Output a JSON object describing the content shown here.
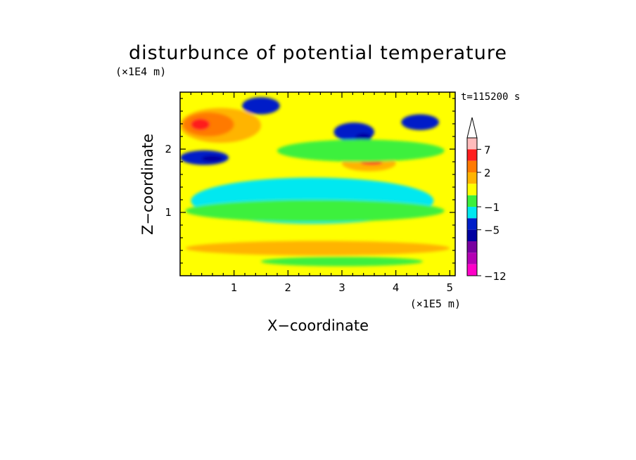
{
  "chart_data": {
    "type": "heatmap",
    "title": "disturbunce of potential temperature",
    "xlabel": "X−coordinate",
    "ylabel": "Z−coordinate",
    "x_unit": "(×1E5 m)",
    "y_unit": "(×1E4 m)",
    "time_label": "t=115200 s",
    "xlim": [
      0,
      5.1
    ],
    "ylim": [
      0,
      2.9
    ],
    "x_ticks": [
      1,
      2,
      3,
      4,
      5
    ],
    "y_ticks": [
      1,
      2
    ],
    "colorbar": {
      "labels": [
        "7",
        "2",
        "−1",
        "−5",
        "−12"
      ],
      "label_values": [
        7,
        2,
        -1,
        -5,
        -12
      ],
      "levels_top_to_bottom": [
        {
          "level": 10,
          "color": "#ffbcbc"
        },
        {
          "level": 7,
          "color": "#ff1e1e"
        },
        {
          "level": 5,
          "color": "#ff7a00"
        },
        {
          "level": 2,
          "color": "#ffb400"
        },
        {
          "level": 1,
          "color": "#ffff00"
        },
        {
          "level": 0,
          "color": "#3cf03c"
        },
        {
          "level": -1,
          "color": "#00e8f0"
        },
        {
          "level": -3,
          "color": "#001ec8"
        },
        {
          "level": -5,
          "color": "#0000a0"
        },
        {
          "level": -7,
          "color": "#7800a0"
        },
        {
          "level": -9,
          "color": "#b400b4"
        },
        {
          "level": -12,
          "color": "#ff00c8"
        }
      ],
      "overflow_arrow_color": "#ffffff"
    },
    "field_regions": [
      {
        "value": 1,
        "x": [
          0,
          5.1
        ],
        "z": [
          0,
          2.9
        ]
      },
      {
        "value": -1,
        "x": [
          0.2,
          4.7
        ],
        "z": [
          0.82,
          1.55
        ]
      },
      {
        "value": 0,
        "x": [
          0.1,
          4.9
        ],
        "z": [
          0.85,
          1.2
        ]
      },
      {
        "value": 2,
        "x": [
          0.1,
          5.0
        ],
        "z": [
          0.32,
          0.55
        ]
      },
      {
        "value": 0,
        "x": [
          1.5,
          4.5
        ],
        "z": [
          0.15,
          0.3
        ]
      },
      {
        "value": 2,
        "x": [
          0.0,
          1.5
        ],
        "z": [
          2.1,
          2.65
        ]
      },
      {
        "value": 5,
        "x": [
          0.05,
          1.0
        ],
        "z": [
          2.2,
          2.58
        ]
      },
      {
        "value": 7,
        "x": [
          0.2,
          0.55
        ],
        "z": [
          2.3,
          2.48
        ]
      },
      {
        "value": -3,
        "x": [
          0.0,
          0.9
        ],
        "z": [
          1.75,
          1.98
        ]
      },
      {
        "value": -5,
        "x": [
          0.4,
          0.8
        ],
        "z": [
          1.8,
          1.9
        ]
      },
      {
        "value": -3,
        "x": [
          1.15,
          1.85
        ],
        "z": [
          2.55,
          2.82
        ]
      },
      {
        "value": -3,
        "x": [
          2.85,
          3.6
        ],
        "z": [
          2.12,
          2.42
        ]
      },
      {
        "value": -5,
        "x": [
          3.25,
          3.55
        ],
        "z": [
          2.12,
          2.25
        ]
      },
      {
        "value": -3,
        "x": [
          4.1,
          4.8
        ],
        "z": [
          2.3,
          2.55
        ]
      },
      {
        "value": 2,
        "x": [
          3.0,
          4.0
        ],
        "z": [
          1.65,
          1.9
        ]
      },
      {
        "value": 7,
        "x": [
          3.35,
          3.75
        ],
        "z": [
          1.75,
          1.82
        ]
      },
      {
        "value": 0,
        "x": [
          1.8,
          4.9
        ],
        "z": [
          1.8,
          2.15
        ]
      }
    ]
  }
}
